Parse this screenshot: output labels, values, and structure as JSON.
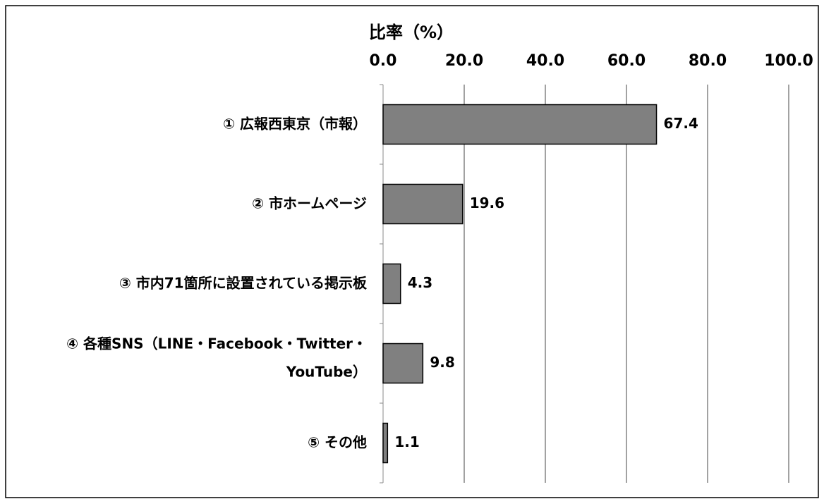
{
  "chart_data": {
    "type": "barh",
    "xlabel": "比率（%）",
    "categories": [
      "① 広報西東京（市報）",
      "② 市ホームページ",
      "③ 市内71箇所に設置されている掲示板",
      "④ 各種SNS（LINE・Facebook・Twitter・\nYouTube）",
      "⑤ その他"
    ],
    "values": [
      67.4,
      19.6,
      4.3,
      9.8,
      1.1
    ],
    "color": "#808080",
    "xlim": [
      0,
      100
    ],
    "xticks": [
      {
        "value": 0,
        "label": "0.0"
      },
      {
        "value": 20,
        "label": "20.0"
      },
      {
        "value": 40,
        "label": "40.0"
      },
      {
        "value": 60,
        "label": "60.0"
      },
      {
        "value": 80,
        "label": "80.0"
      },
      {
        "value": 100,
        "label": "100.0"
      }
    ],
    "grid": true
  }
}
